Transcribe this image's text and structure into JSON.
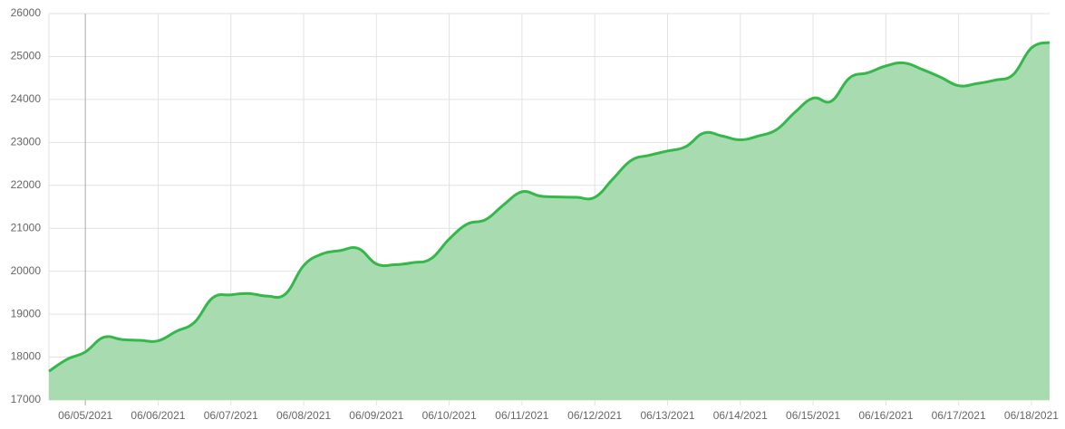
{
  "chart_data": {
    "type": "area",
    "categories": [
      null,
      null,
      "06/05/2021",
      null,
      null,
      null,
      "06/06/2021",
      null,
      null,
      null,
      "06/07/2021",
      null,
      null,
      null,
      "06/08/2021",
      null,
      null,
      null,
      "06/09/2021",
      null,
      null,
      null,
      "06/10/2021",
      null,
      null,
      null,
      "06/11/2021",
      null,
      null,
      null,
      "06/12/2021",
      null,
      null,
      null,
      "06/13/2021",
      null,
      null,
      null,
      "06/14/2021",
      null,
      null,
      null,
      "06/15/2021",
      null,
      null,
      null,
      "06/16/2021",
      null,
      null,
      null,
      "06/17/2021",
      null,
      null,
      null,
      "06/18/2021",
      null
    ],
    "series": [
      {
        "color": "#34b84a",
        "fill": "#a8dcb0",
        "values": [
          17670,
          17950,
          18120,
          18460,
          18410,
          18390,
          18380,
          18600,
          18810,
          19380,
          19450,
          19480,
          19420,
          19470,
          20130,
          20400,
          20480,
          20530,
          20170,
          20150,
          20200,
          20290,
          20750,
          21100,
          21200,
          21550,
          21850,
          21750,
          21730,
          21720,
          21720,
          22150,
          22580,
          22700,
          22800,
          22900,
          23220,
          23150,
          23060,
          23150,
          23300,
          23700,
          24030,
          23960,
          24500,
          24620,
          24780,
          24850,
          24700,
          24520,
          24320,
          24370,
          24450,
          24580,
          25200,
          25330
        ]
      }
    ],
    "ylim": [
      17000,
      26000
    ],
    "yticks": [
      17000,
      18000,
      19000,
      20000,
      21000,
      22000,
      23000,
      24000,
      25000,
      26000
    ],
    "grid": true
  }
}
